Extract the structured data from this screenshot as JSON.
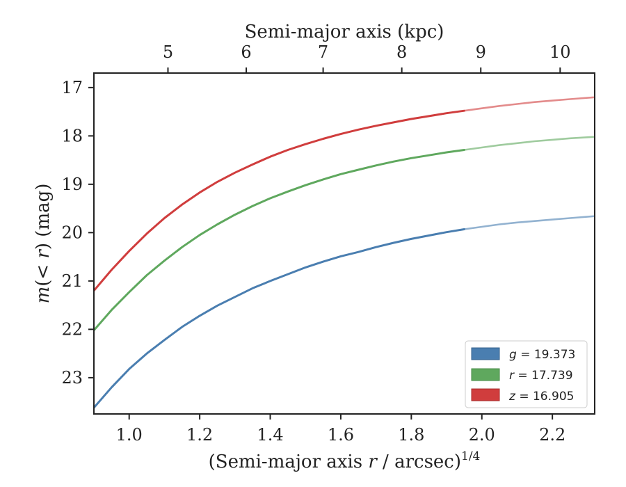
{
  "chart_data": {
    "type": "line",
    "xlabel": "(Semi-major axis r / arcsec)^1/4",
    "xlabel_parts": {
      "main": "(Semi-major axis ",
      "var": "r",
      "rest": " / arcsec)",
      "sup": "1/4"
    },
    "ylabel": "m(< r) (mag)",
    "ylabel_parts": {
      "var": "m",
      "open": "(",
      "inner": "< r",
      "close": ")",
      "unit": " (mag)"
    },
    "x2label": "Semi-major axis (kpc)",
    "xlim": [
      0.9,
      2.32
    ],
    "ylim": [
      23.75,
      16.7
    ],
    "y_inverted": true,
    "xticks": [
      1.0,
      1.2,
      1.4,
      1.6,
      1.8,
      2.0,
      2.2
    ],
    "xtick_labels": [
      "1.0",
      "1.2",
      "1.4",
      "1.6",
      "1.8",
      "2.0",
      "2.2"
    ],
    "yticks": [
      17,
      18,
      19,
      20,
      21,
      22,
      23
    ],
    "ytick_labels": [
      "17",
      "18",
      "19",
      "20",
      "21",
      "22",
      "23"
    ],
    "x2ticks": [
      1.11,
      1.332,
      1.55,
      1.773,
      1.997,
      2.222
    ],
    "x2tick_labels": [
      "5",
      "6",
      "7",
      "8",
      "9",
      "10"
    ],
    "legend_position": "lower-right",
    "series": [
      {
        "name": "g = 19.373",
        "name_parts": {
          "var": "g",
          "eq": " = 19.373"
        },
        "color": "#4a7eb0",
        "x": [
          0.9,
          0.95,
          1.0,
          1.05,
          1.1,
          1.15,
          1.2,
          1.25,
          1.3,
          1.35,
          1.4,
          1.45,
          1.5,
          1.55,
          1.6,
          1.65,
          1.7,
          1.75,
          1.8,
          1.85,
          1.9,
          1.95,
          2.0,
          2.05,
          2.1,
          2.15,
          2.2,
          2.25,
          2.32
        ],
        "y": [
          23.62,
          23.2,
          22.82,
          22.5,
          22.22,
          21.95,
          21.72,
          21.51,
          21.33,
          21.15,
          21.0,
          20.86,
          20.72,
          20.6,
          20.49,
          20.4,
          20.3,
          20.21,
          20.13,
          20.06,
          19.99,
          19.93,
          19.88,
          19.83,
          19.79,
          19.76,
          19.73,
          19.7,
          19.66
        ]
      },
      {
        "name": "r = 17.739",
        "name_parts": {
          "var": "r",
          "eq": " = 17.739"
        },
        "color": "#5fa85e",
        "x": [
          0.9,
          0.95,
          1.0,
          1.05,
          1.1,
          1.15,
          1.2,
          1.25,
          1.3,
          1.35,
          1.4,
          1.45,
          1.5,
          1.55,
          1.6,
          1.65,
          1.7,
          1.75,
          1.8,
          1.85,
          1.9,
          1.95,
          2.0,
          2.05,
          2.1,
          2.15,
          2.2,
          2.25,
          2.32
        ],
        "y": [
          22.02,
          21.6,
          21.23,
          20.88,
          20.58,
          20.3,
          20.05,
          19.83,
          19.63,
          19.45,
          19.29,
          19.15,
          19.02,
          18.9,
          18.79,
          18.7,
          18.61,
          18.53,
          18.46,
          18.4,
          18.34,
          18.29,
          18.24,
          18.19,
          18.15,
          18.11,
          18.08,
          18.05,
          18.02
        ]
      },
      {
        "name": "z = 16.905",
        "name_parts": {
          "var": "z",
          "eq": " = 16.905"
        },
        "color": "#d03d3d",
        "x": [
          0.9,
          0.95,
          1.0,
          1.05,
          1.1,
          1.15,
          1.2,
          1.25,
          1.3,
          1.35,
          1.4,
          1.45,
          1.5,
          1.55,
          1.6,
          1.65,
          1.7,
          1.75,
          1.8,
          1.85,
          1.9,
          1.95,
          2.0,
          2.05,
          2.1,
          2.15,
          2.2,
          2.25,
          2.32
        ],
        "y": [
          21.2,
          20.77,
          20.38,
          20.02,
          19.7,
          19.42,
          19.17,
          18.95,
          18.76,
          18.59,
          18.43,
          18.29,
          18.17,
          18.06,
          17.96,
          17.87,
          17.79,
          17.72,
          17.65,
          17.59,
          17.53,
          17.48,
          17.43,
          17.38,
          17.34,
          17.3,
          17.27,
          17.24,
          17.2
        ]
      }
    ],
    "solid_until_x": 1.97
  }
}
